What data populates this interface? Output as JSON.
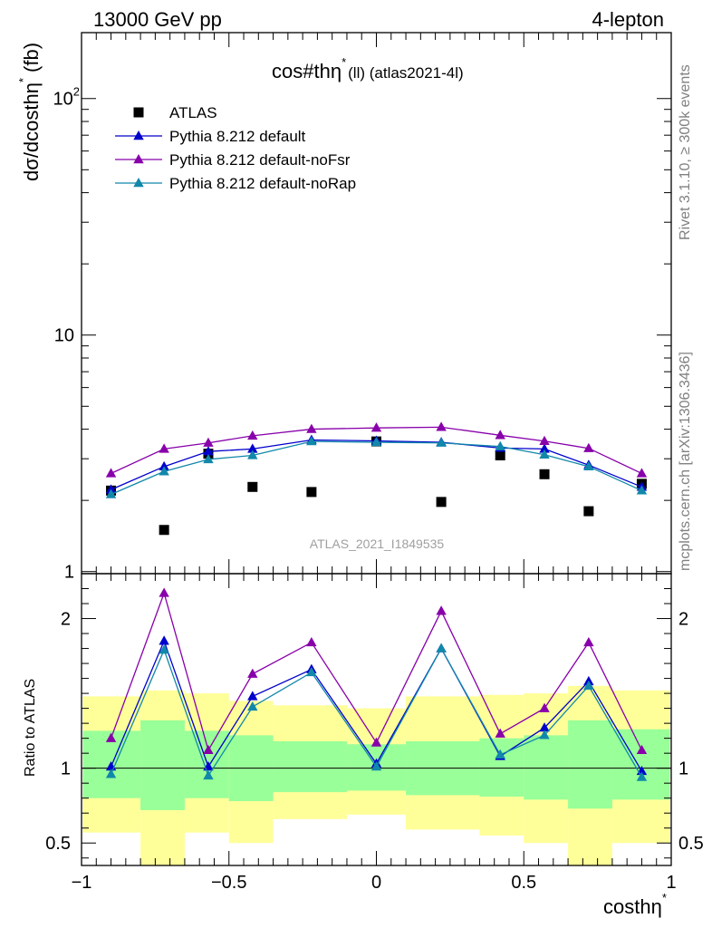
{
  "header": {
    "left": "13000 GeV pp",
    "right": "4-lepton"
  },
  "side": {
    "rivet": "Rivet 3.1.10, ≥ 300k events",
    "mcplots": "mcplots.cern.ch [arXiv:1306.3436]"
  },
  "chart_data": [
    {
      "type": "scatter",
      "title": "cos#thη* (ll) (atlas2021-4l)",
      "title_main": "cos#thη",
      "title_sup": "*",
      "title_rest": "(ll) (atlas2021-4l)",
      "ylabel": "dσ/dcosthη* (fb)",
      "ylabel_main": "dσ/dcosthη",
      "ylabel_sup": "*",
      "ylabel_rest": "(fb)",
      "yscale": "log",
      "ylim": [
        0.98,
        190
      ],
      "xlim": [
        -1.0,
        1.0
      ],
      "ytick_labels": [
        {
          "value": 1,
          "label": "1"
        },
        {
          "value": 10,
          "label": "10"
        },
        {
          "value": 100,
          "label": "10",
          "sup": "2"
        }
      ],
      "watermark": "ATLAS_2021_I1849535",
      "legend_position": "top-left",
      "x": [
        -0.9,
        -0.72,
        -0.57,
        -0.42,
        -0.22,
        0.0,
        0.22,
        0.42,
        0.57,
        0.72,
        0.9
      ],
      "series": [
        {
          "name": "ATLAS",
          "marker": "square",
          "color": "#000000",
          "values": [
            2.2,
            1.5,
            3.15,
            2.28,
            2.17,
            3.55,
            1.97,
            3.1,
            2.58,
            1.8,
            2.35
          ]
        },
        {
          "name": "Pythia 8.212 default",
          "marker": "triangle",
          "color": "#0000cc",
          "values": [
            2.22,
            2.78,
            3.22,
            3.3,
            3.6,
            3.57,
            3.52,
            3.33,
            3.3,
            2.82,
            2.28
          ]
        },
        {
          "name": "Pythia 8.212 default-noFsr",
          "marker": "triangle",
          "color": "#8800aa",
          "values": [
            2.6,
            3.3,
            3.5,
            3.75,
            4.0,
            4.05,
            4.08,
            3.77,
            3.56,
            3.32,
            2.6
          ]
        },
        {
          "name": "Pythia 8.212 default-noRap",
          "marker": "triangle",
          "color": "#1188aa",
          "values": [
            2.12,
            2.65,
            2.98,
            3.1,
            3.55,
            3.52,
            3.5,
            3.38,
            3.12,
            2.78,
            2.2
          ]
        }
      ]
    },
    {
      "type": "scatter",
      "title": "Ratio to ATLAS",
      "ylabel": "Ratio to ATLAS",
      "xlabel": "costhη*",
      "xlabel_main": "costhη",
      "xlabel_sup": "*",
      "ylim": [
        0.35,
        2.3
      ],
      "xlim": [
        -1.0,
        1.0
      ],
      "xtick_labels": [
        {
          "value": -1,
          "label": "−1"
        },
        {
          "value": -0.5,
          "label": "−0.5"
        },
        {
          "value": 0,
          "label": "0"
        },
        {
          "value": 0.5,
          "label": "0.5"
        },
        {
          "value": 1,
          "label": "1"
        }
      ],
      "ytick_labels": [
        {
          "value": 0.5,
          "label": "0.5"
        },
        {
          "value": 1,
          "label": "1"
        },
        {
          "value": 2,
          "label": "2"
        }
      ],
      "bands": [
        {
          "name": "1 sigma",
          "color": "#99ff99",
          "bins": [
            {
              "x0": -0.995,
              "x1": -0.8,
              "lo": 0.8,
              "hi": 1.25
            },
            {
              "x0": -0.8,
              "x1": -0.65,
              "lo": 0.72,
              "hi": 1.32
            },
            {
              "x0": -0.65,
              "x1": -0.5,
              "lo": 0.8,
              "hi": 1.25
            },
            {
              "x0": -0.5,
              "x1": -0.35,
              "lo": 0.78,
              "hi": 1.22
            },
            {
              "x0": -0.35,
              "x1": -0.1,
              "lo": 0.84,
              "hi": 1.18
            },
            {
              "x0": -0.1,
              "x1": 0.1,
              "lo": 0.85,
              "hi": 1.16
            },
            {
              "x0": 0.1,
              "x1": 0.35,
              "lo": 0.82,
              "hi": 1.18
            },
            {
              "x0": 0.35,
              "x1": 0.5,
              "lo": 0.81,
              "hi": 1.2
            },
            {
              "x0": 0.5,
              "x1": 0.65,
              "lo": 0.79,
              "hi": 1.22
            },
            {
              "x0": 0.65,
              "x1": 0.8,
              "lo": 0.73,
              "hi": 1.32
            },
            {
              "x0": 0.8,
              "x1": 0.995,
              "lo": 0.79,
              "hi": 1.26
            }
          ]
        },
        {
          "name": "2 sigma",
          "color": "#ffff99",
          "bins": [
            {
              "x0": -0.995,
              "x1": -0.8,
              "lo": 0.57,
              "hi": 1.48
            },
            {
              "x0": -0.8,
              "x1": -0.65,
              "lo": 0.3,
              "hi": 1.52
            },
            {
              "x0": -0.65,
              "x1": -0.5,
              "lo": 0.57,
              "hi": 1.5
            },
            {
              "x0": -0.5,
              "x1": -0.35,
              "lo": 0.5,
              "hi": 1.45
            },
            {
              "x0": -0.35,
              "x1": -0.1,
              "lo": 0.66,
              "hi": 1.42
            },
            {
              "x0": -0.1,
              "x1": 0.1,
              "lo": 0.69,
              "hi": 1.4
            },
            {
              "x0": 0.1,
              "x1": 0.35,
              "lo": 0.59,
              "hi": 1.48
            },
            {
              "x0": 0.35,
              "x1": 0.5,
              "lo": 0.55,
              "hi": 1.49
            },
            {
              "x0": 0.5,
              "x1": 0.65,
              "lo": 0.5,
              "hi": 1.5
            },
            {
              "x0": 0.65,
              "x1": 0.8,
              "lo": 0.3,
              "hi": 1.55
            },
            {
              "x0": 0.8,
              "x1": 0.995,
              "lo": 0.5,
              "hi": 1.52
            }
          ]
        }
      ],
      "reference_line": 1.0,
      "x": [
        -0.9,
        -0.72,
        -0.57,
        -0.42,
        -0.22,
        0.0,
        0.22,
        0.42,
        0.57,
        0.72,
        0.9
      ],
      "series": [
        {
          "name": "Pythia 8.212 default",
          "color": "#0000cc",
          "values": [
            1.01,
            1.85,
            1.01,
            1.48,
            1.66,
            1.03,
            1.8,
            1.08,
            1.27,
            1.58,
            0.98
          ]
        },
        {
          "name": "Pythia 8.212 default-noFsr",
          "color": "#8800aa",
          "values": [
            1.2,
            2.17,
            1.12,
            1.63,
            1.84,
            1.17,
            2.05,
            1.23,
            1.4,
            1.84,
            1.12
          ]
        },
        {
          "name": "Pythia 8.212 default-noRap",
          "color": "#1188aa",
          "values": [
            0.96,
            1.79,
            0.95,
            1.41,
            1.64,
            1.01,
            1.8,
            1.09,
            1.22,
            1.55,
            0.94
          ]
        }
      ]
    }
  ]
}
